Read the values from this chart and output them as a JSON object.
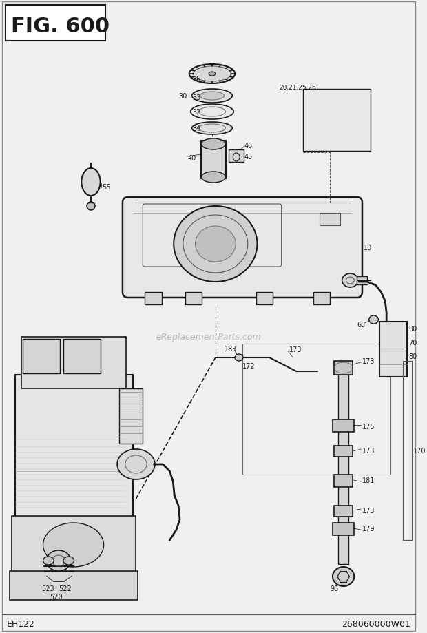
{
  "title": "FIG. 600",
  "footer_left": "EH122",
  "footer_right": "268060000W01",
  "watermark": "eReplacementParts.com",
  "bg_color": "#f0f0f0",
  "line_color": "#1a1a1a",
  "text_color": "#1a1a1a",
  "fig_w": 6.2,
  "fig_h": 9.2,
  "dpi": 100
}
